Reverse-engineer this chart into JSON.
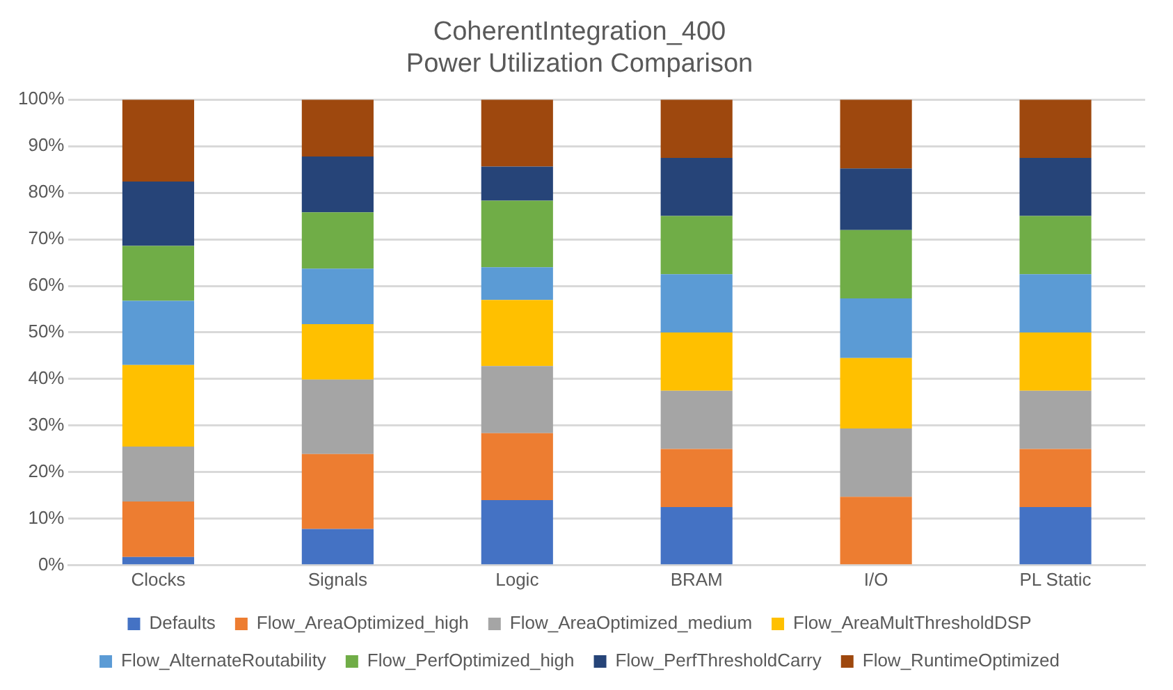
{
  "chart_data": {
    "type": "bar",
    "stacked": true,
    "title": "CoherentIntegration_400",
    "subtitle": "Power Utilization Comparison",
    "categories": [
      "Clocks",
      "Signals",
      "Logic",
      "BRAM",
      "I/O",
      "PL Static"
    ],
    "ylim": [
      0,
      100
    ],
    "yticks": [
      {
        "value": 0,
        "label": "0%"
      },
      {
        "value": 10,
        "label": "10%"
      },
      {
        "value": 20,
        "label": "20%"
      },
      {
        "value": 30,
        "label": "30%"
      },
      {
        "value": 40,
        "label": "40%"
      },
      {
        "value": 50,
        "label": "50%"
      },
      {
        "value": 60,
        "label": "60%"
      },
      {
        "value": 70,
        "label": "70%"
      },
      {
        "value": 80,
        "label": "80%"
      },
      {
        "value": 90,
        "label": "90%"
      },
      {
        "value": 100,
        "label": "100%"
      }
    ],
    "grid": "y",
    "legend": "bottom",
    "series": [
      {
        "name": "Defaults",
        "color": "#4472c4",
        "values": [
          1.8,
          7.8,
          14.0,
          12.5,
          0,
          12.5
        ]
      },
      {
        "name": "Flow_AreaOptimized_high",
        "color": "#ed7d31",
        "values": [
          11.9,
          16.1,
          14.4,
          12.5,
          14.7,
          12.5
        ]
      },
      {
        "name": "Flow_AreaOptimized_medium",
        "color": "#a5a5a5",
        "values": [
          11.8,
          16.0,
          14.4,
          12.5,
          14.7,
          12.5
        ]
      },
      {
        "name": "Flow_AreaMultThresholdDSP",
        "color": "#ffc000",
        "values": [
          17.5,
          11.9,
          14.2,
          12.5,
          15.1,
          12.5
        ]
      },
      {
        "name": "Flow_AlternateRoutability",
        "color": "#5b9bd5",
        "values": [
          13.8,
          11.9,
          7.0,
          12.5,
          12.8,
          12.5
        ]
      },
      {
        "name": "Flow_PerfOptimized_high",
        "color": "#70ad47",
        "values": [
          11.8,
          12.1,
          14.3,
          12.5,
          14.7,
          12.5
        ]
      },
      {
        "name": "Flow_PerfThresholdCarry",
        "color": "#264478",
        "values": [
          13.8,
          12.0,
          7.3,
          12.5,
          13.2,
          12.5
        ]
      },
      {
        "name": "Flow_RuntimeOptimized",
        "color": "#9e480e",
        "values": [
          17.6,
          12.2,
          14.4,
          12.5,
          14.8,
          12.5
        ]
      }
    ]
  }
}
